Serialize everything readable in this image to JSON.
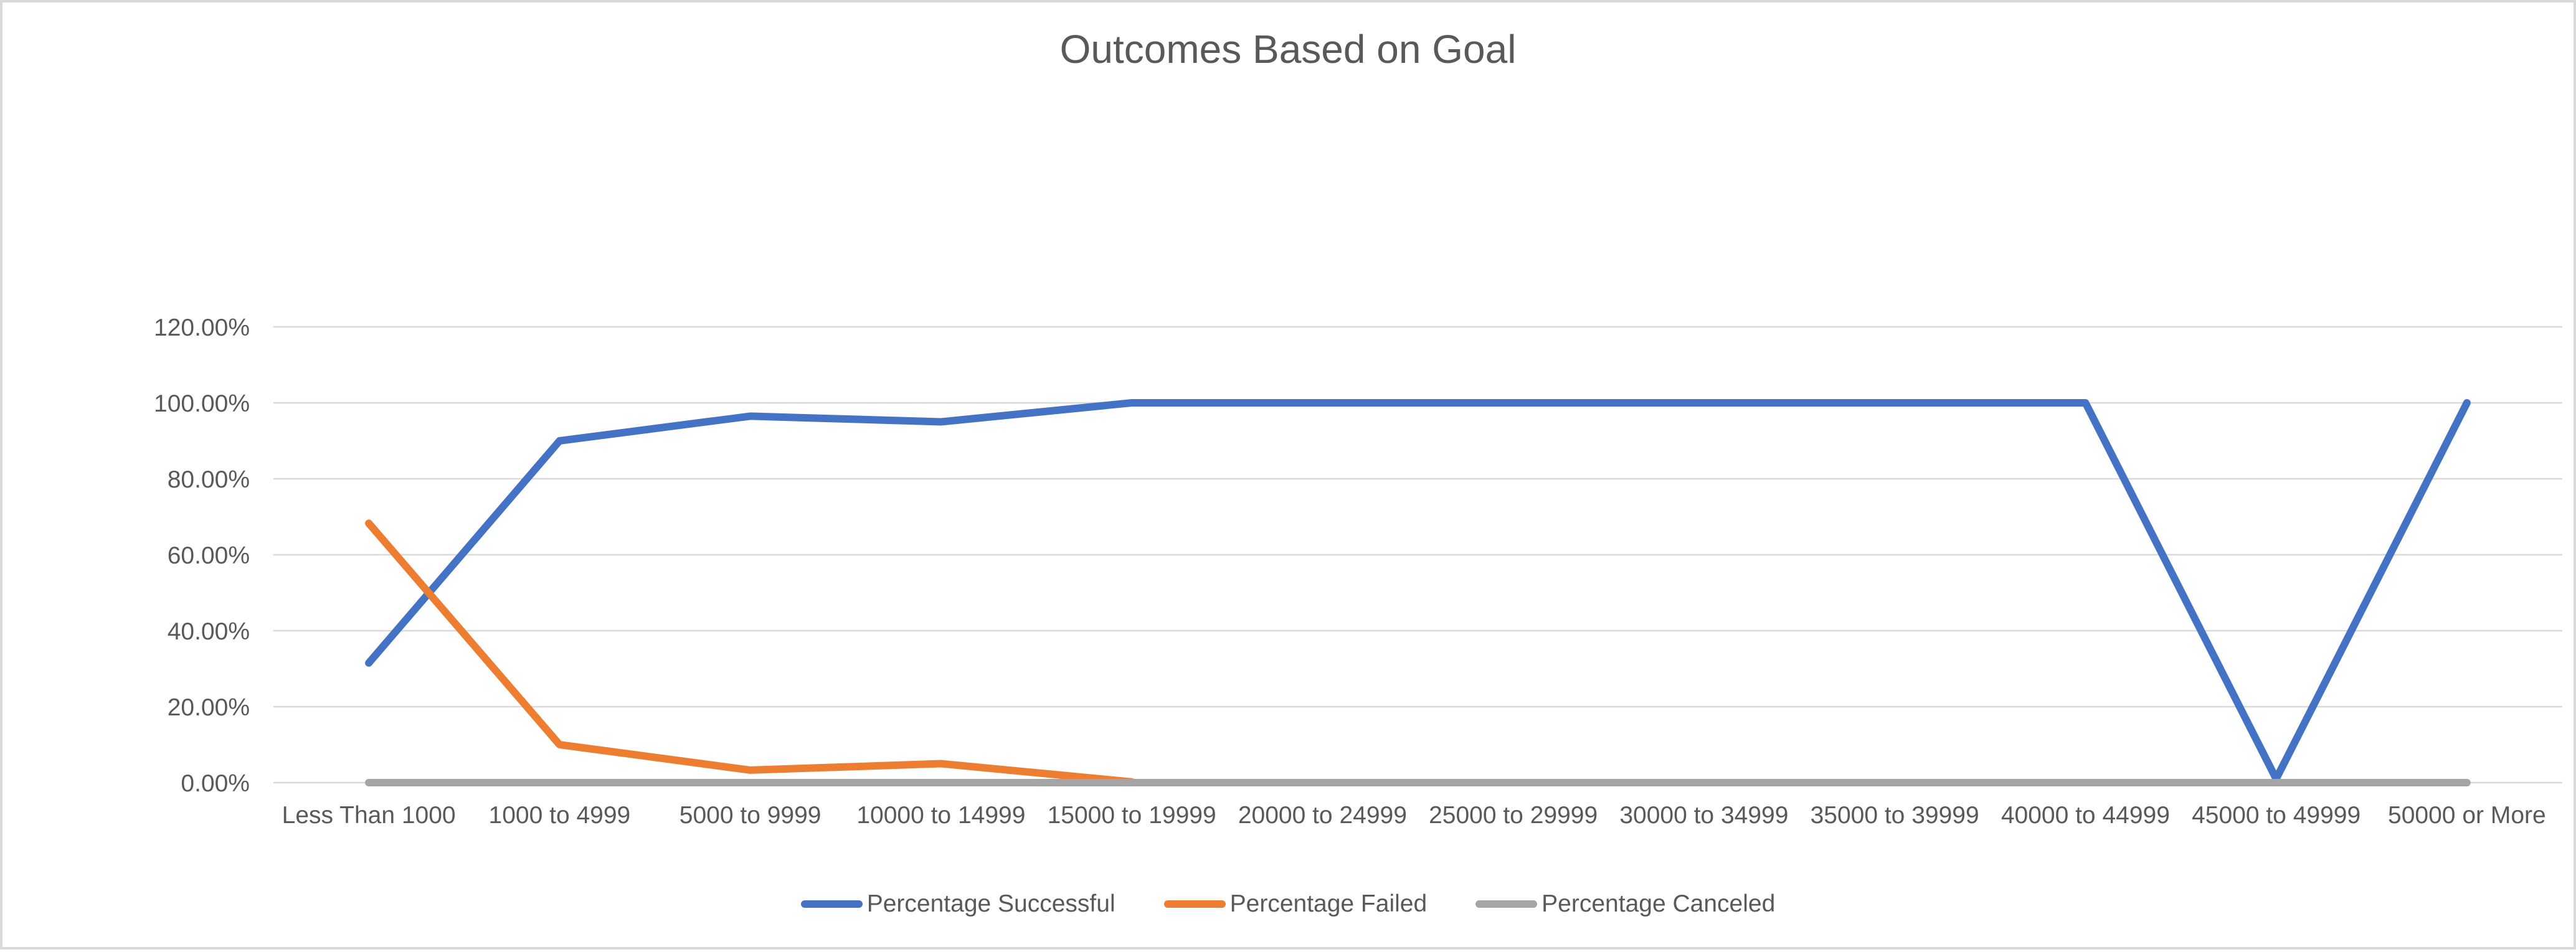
{
  "chart_data": {
    "type": "line",
    "title": "Outcomes Based on Goal",
    "categories": [
      "Less Than 1000",
      "1000 to 4999",
      "5000 to 9999",
      "10000 to 14999",
      "15000 to 19999",
      "20000 to 24999",
      "25000 to 29999",
      "30000 to 34999",
      "35000 to 39999",
      "40000 to 44999",
      "45000 to 49999",
      "50000 or More"
    ],
    "y_ticks": [
      "0.00%",
      "20.00%",
      "40.00%",
      "60.00%",
      "80.00%",
      "100.00%",
      "120.00%"
    ],
    "ylim": [
      0,
      120
    ],
    "xlabel": "",
    "ylabel": "",
    "grid": "horizontal",
    "legend_position": "bottom",
    "series": [
      {
        "name": "Percentage Successful",
        "color": "#4472C4",
        "values": [
          31.5,
          90,
          96.5,
          95,
          100,
          100,
          100,
          100,
          100,
          100,
          1,
          100
        ]
      },
      {
        "name": "Percentage Failed",
        "color": "#ED7D31",
        "values": [
          68.3,
          10,
          3.3,
          5,
          0.2,
          null,
          null,
          null,
          null,
          null,
          null,
          null
        ]
      },
      {
        "name": "Percentage Canceled",
        "color": "#A5A5A5",
        "values": [
          0,
          0,
          0,
          0,
          0,
          0,
          0,
          0,
          0,
          0,
          0,
          0
        ]
      }
    ]
  },
  "colors": {
    "text": "#595959",
    "gridline": "#D9D9D9",
    "border": "#D9D9D9",
    "background": "#FFFFFF"
  }
}
